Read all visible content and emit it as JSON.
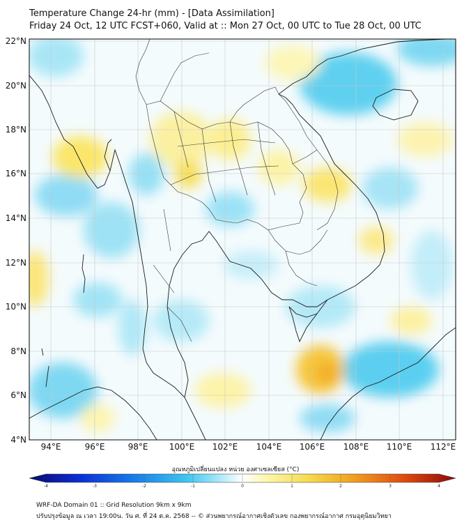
{
  "header": {
    "title": "Temperature Change 24-hr (mm) - [Data Assimilation]",
    "subtitle": "Friday 24 Oct, 12 UTC FCST+060, Valid at :: Mon 27 Oct, 00 UTC to Tue 28 Oct, 00 UTC"
  },
  "map": {
    "lat_ticks": [
      "22°N",
      "20°N",
      "18°N",
      "16°N",
      "14°N",
      "12°N",
      "10°N",
      "8°N",
      "6°N",
      "4°N"
    ],
    "lon_ticks": [
      "94°E",
      "96°E",
      "98°E",
      "100°E",
      "102°E",
      "104°E",
      "106°E",
      "108°E",
      "110°E",
      "112°E"
    ],
    "lat_range": [
      4,
      22.2
    ],
    "lon_range": [
      93.0,
      112.8
    ],
    "grid": true
  },
  "colorbar": {
    "title": "อุณหภูมิเปลี่ยนแปลง หน่วย องศาเซลเซียส (°C)",
    "ticks": [
      "-4",
      "-3",
      "-2",
      "-1",
      "0",
      "1",
      "2",
      "3",
      "4"
    ],
    "range": [
      -4,
      4
    ],
    "colors": [
      "#0a0a6e",
      "#0b2fd6",
      "#1a7fe8",
      "#3ec6f0",
      "#bfeefa",
      "#ffffff",
      "#fdf6a8",
      "#f5d84a",
      "#f0a020",
      "#e04a10",
      "#8a0a0a"
    ]
  },
  "footer": {
    "line1": "WRF-DA Domain 01 :: Grid Resolution 9km x 9km",
    "line2": "ปรับปรุงข้อมูล ณ เวลา 19:00น. วัน ศ. ที่ 24 ต.ค. 2568 -- © ส่วนพยากรณ์อากาศเชิงตัวเลข กองพยากรณ์อากาศ กรมอุตุนิยมวิทยา"
  }
}
